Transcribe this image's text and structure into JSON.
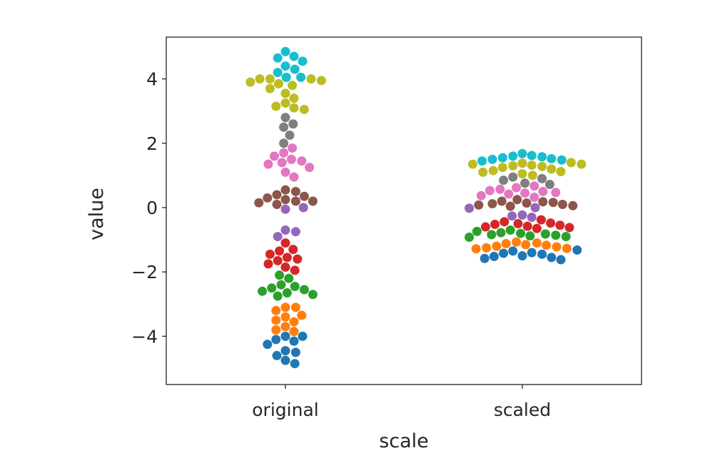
{
  "chart_data": {
    "type": "scatter",
    "style": "swarm",
    "xlabel": "scale",
    "ylabel": "value",
    "categories": [
      "original",
      "scaled"
    ],
    "ylim": [
      -5.5,
      5.3
    ],
    "yticks": [
      -4,
      -2,
      0,
      2,
      4
    ],
    "ytick_labels": [
      "−4",
      "−2",
      "0",
      "2",
      "4"
    ],
    "grid": false,
    "groups": [
      {
        "color": "#1f77b4",
        "original": [
          -4.85,
          -4.75,
          -4.6,
          -4.5,
          -4.45,
          -4.25,
          -4.15,
          -4.1,
          -4.0,
          -4.0
        ],
        "scaled": [
          -1.62,
          -1.58,
          -1.55,
          -1.52,
          -1.5,
          -1.45,
          -1.42,
          -1.4,
          -1.35,
          -1.32
        ]
      },
      {
        "color": "#ff7f0e",
        "original": [
          -3.85,
          -3.8,
          -3.7,
          -3.55,
          -3.5,
          -3.4,
          -3.35,
          -3.2,
          -3.1,
          -3.1
        ],
        "scaled": [
          -1.28,
          -1.27,
          -1.25,
          -1.22,
          -1.2,
          -1.17,
          -1.15,
          -1.12,
          -1.1,
          -1.07
        ]
      },
      {
        "color": "#2ca02c",
        "original": [
          -2.75,
          -2.7,
          -2.65,
          -2.6,
          -2.55,
          -2.5,
          -2.45,
          -2.4,
          -2.2,
          -2.1
        ],
        "scaled": [
          -0.92,
          -0.9,
          -0.88,
          -0.86,
          -0.84,
          -0.82,
          -0.8,
          -0.78,
          -0.74,
          -0.7
        ]
      },
      {
        "color": "#d62728",
        "original": [
          -1.95,
          -1.85,
          -1.75,
          -1.65,
          -1.6,
          -1.55,
          -1.45,
          -1.35,
          -1.3,
          -1.1
        ],
        "scaled": [
          -0.65,
          -0.62,
          -0.6,
          -0.58,
          -0.55,
          -0.52,
          -0.5,
          -0.48,
          -0.44,
          -0.38
        ]
      },
      {
        "color": "#9467bd",
        "original": [
          -0.9,
          -0.75,
          -0.7,
          -0.05,
          0.0
        ],
        "scaled": [
          -0.3,
          -0.26,
          -0.23,
          -0.02,
          0.0
        ]
      },
      {
        "color": "#8c564b",
        "original": [
          0.1,
          0.15,
          0.2,
          0.25,
          0.3,
          0.35,
          0.4,
          0.5,
          0.55,
          0.2
        ],
        "scaled": [
          0.04,
          0.06,
          0.08,
          0.1,
          0.12,
          0.14,
          0.16,
          0.18,
          0.2,
          0.25
        ]
      },
      {
        "color": "#e377c2",
        "original": [
          0.95,
          1.1,
          1.25,
          1.35,
          1.4,
          1.45,
          1.5,
          1.6,
          1.7,
          1.85
        ],
        "scaled": [
          0.32,
          0.37,
          0.42,
          0.45,
          0.47,
          0.5,
          0.53,
          0.57,
          0.62,
          0.67
        ]
      },
      {
        "color": "#7f7f7f",
        "original": [
          2.0,
          2.25,
          2.5,
          2.6,
          2.8
        ],
        "scaled": [
          0.72,
          0.76,
          0.85,
          0.9,
          0.95
        ]
      },
      {
        "color": "#bcbd22",
        "original": [
          3.05,
          3.1,
          3.15,
          3.25,
          3.4,
          3.55,
          3.7,
          3.8,
          3.85,
          3.9,
          3.95,
          4.0,
          4.0,
          4.0
        ],
        "scaled": [
          1.0,
          1.05,
          1.1,
          1.12,
          1.15,
          1.2,
          1.25,
          1.28,
          1.3,
          1.32,
          1.35,
          1.35,
          1.38,
          1.4
        ]
      },
      {
        "color": "#17becf",
        "original": [
          4.05,
          4.05,
          4.2,
          4.3,
          4.4,
          4.55,
          4.65,
          4.7,
          4.85
        ],
        "scaled": [
          1.45,
          1.48,
          1.5,
          1.52,
          1.55,
          1.58,
          1.6,
          1.62,
          1.68
        ]
      }
    ]
  }
}
